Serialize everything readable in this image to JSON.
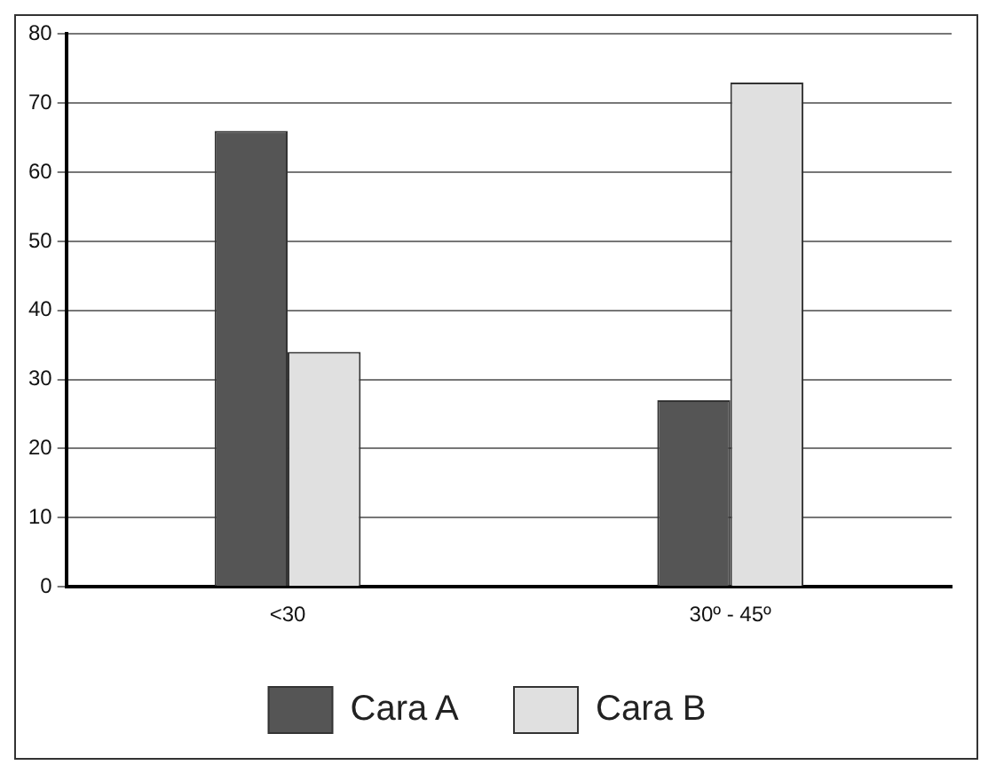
{
  "chart_data": {
    "type": "bar",
    "categories": [
      "<30",
      "30º - 45º"
    ],
    "series": [
      {
        "name": "Cara A",
        "color": "#555555",
        "values": [
          66,
          27
        ]
      },
      {
        "name": "Cara B",
        "color": "#e0e0e0",
        "values": [
          34,
          73
        ]
      }
    ],
    "ylim": [
      0,
      80
    ],
    "yticks": [
      0,
      10,
      20,
      30,
      40,
      50,
      60,
      70,
      80
    ],
    "grid": "y",
    "legend": "bottom"
  }
}
